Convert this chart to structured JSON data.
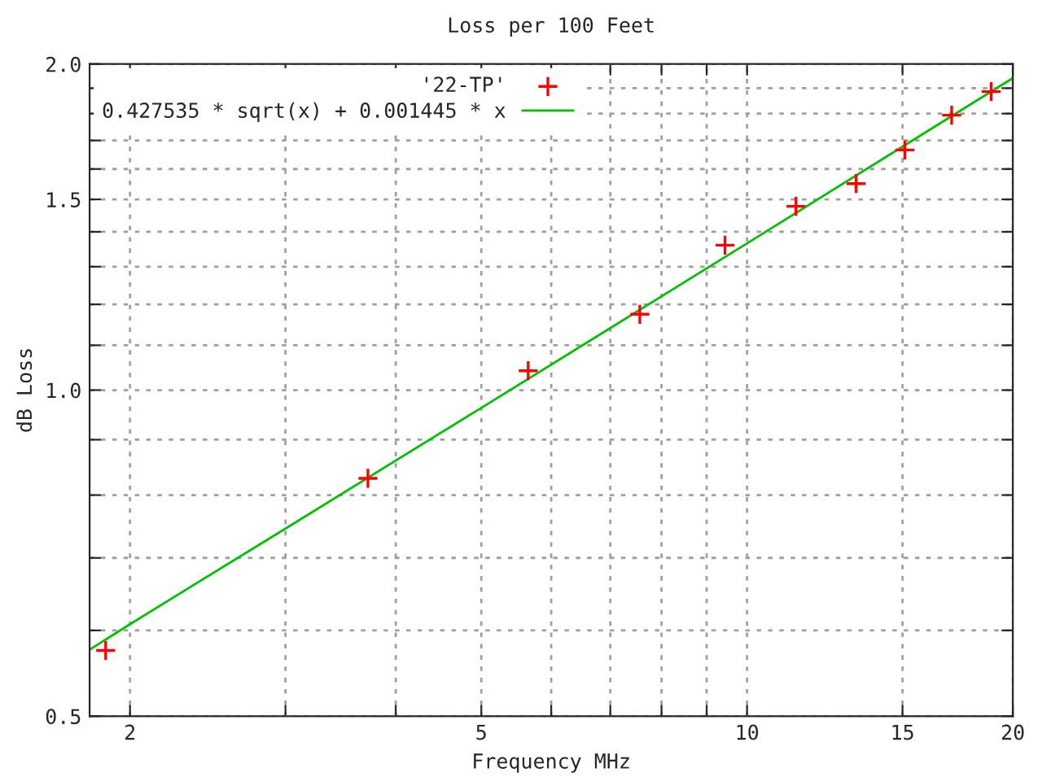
{
  "chart_data": {
    "type": "scatter",
    "title": "Loss per 100 Feet",
    "xlabel": "Frequency MHz",
    "ylabel": "dB Loss",
    "log": "xy",
    "xlim": [
      1.8,
      20
    ],
    "ylim": [
      0.5,
      2.0
    ],
    "xticks": [
      2,
      {
        "value": 3,
        "label": null
      },
      {
        "value": 4,
        "label": null
      },
      5,
      {
        "value": 6,
        "label": null
      },
      {
        "value": 7,
        "label": null
      },
      {
        "value": 8,
        "label": null
      },
      {
        "value": 9,
        "label": null
      },
      10,
      15,
      20
    ],
    "yticks": [
      0.5,
      {
        "value": 0.6,
        "label": null
      },
      {
        "value": 0.7,
        "label": null
      },
      {
        "value": 0.8,
        "label": null
      },
      {
        "value": 0.9,
        "label": null
      },
      {
        "value": 1.0,
        "label": "1.0"
      },
      {
        "value": 1.1,
        "label": null
      },
      {
        "value": 1.2,
        "label": null
      },
      {
        "value": 1.3,
        "label": null
      },
      {
        "value": 1.4,
        "label": null
      },
      1.5,
      {
        "value": 1.6,
        "label": null
      },
      {
        "value": 1.7,
        "label": null
      },
      {
        "value": 1.8,
        "label": null
      },
      {
        "value": 1.9,
        "label": null
      },
      {
        "value": 2.0,
        "label": "2.0"
      }
    ],
    "grid": true,
    "legend": "top left",
    "series": [
      {
        "name": "'22-TP'",
        "marker": "cross",
        "color": "#ff0000",
        "x": [
          1.877,
          3.72,
          5.65,
          7.56,
          9.44,
          11.36,
          13.29,
          15.09,
          17.05,
          18.9
        ],
        "values": [
          0.575,
          0.829,
          1.042,
          1.175,
          1.361,
          1.478,
          1.551,
          1.666,
          1.794,
          1.886
        ]
      },
      {
        "name": "0.427535 * sqrt(x) + 0.001445 * x",
        "type": "line",
        "line_style": "solid",
        "color": "#00c000",
        "x": [
          1.8,
          2,
          3,
          5,
          7,
          10,
          15,
          20
        ],
        "values": [
          0.576,
          0.608,
          0.745,
          0.963,
          1.141,
          1.366,
          1.678,
          1.941
        ]
      }
    ]
  }
}
